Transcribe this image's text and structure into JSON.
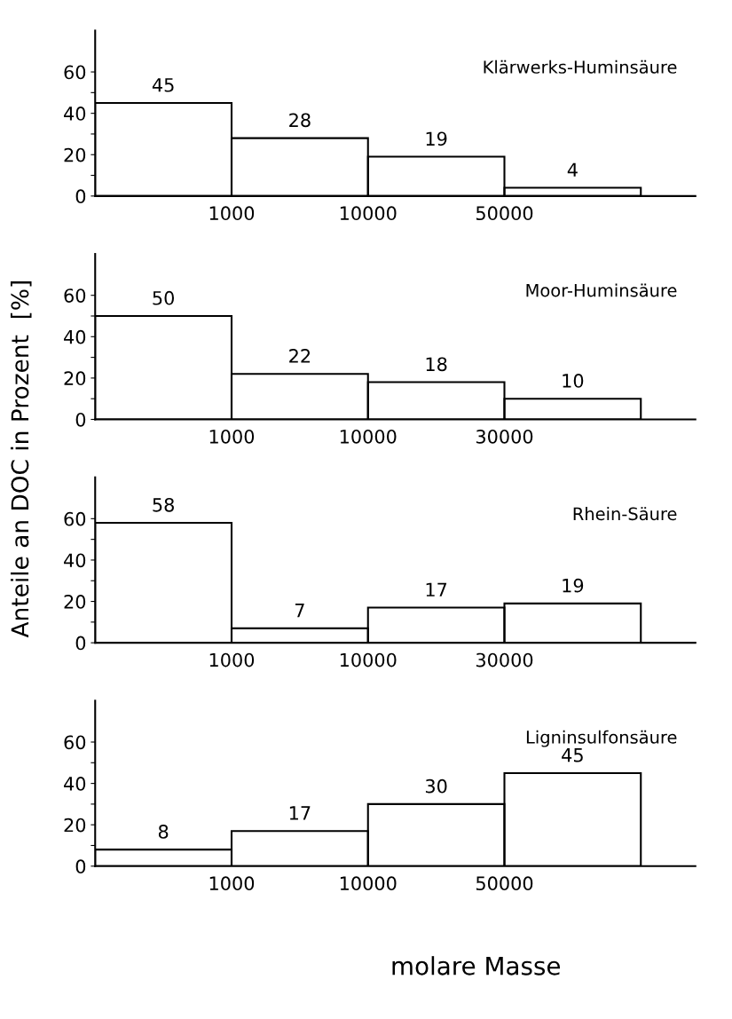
{
  "chart_data": [
    {
      "type": "bar",
      "title": "Klärwerks-Huminsäure",
      "ylabel": "Anteile an DOC in Prozent  [%]",
      "categories": [
        null,
        null,
        null,
        null
      ],
      "values": [
        45,
        28,
        19,
        4
      ],
      "color": "#000000",
      "data_labels": true,
      "ylim": [
        0,
        80
      ],
      "yticks": [
        0,
        {
          "value": 10,
          "label": null
        },
        20,
        {
          "value": 30,
          "label": null
        },
        40,
        {
          "value": 50,
          "label": null
        },
        60
      ],
      "annotations": [
        "1000",
        "10000",
        "50000"
      ],
      "grid": false
    },
    {
      "type": "bar",
      "title": "Moor-Huminsäure",
      "categories": [
        null,
        null,
        null,
        null
      ],
      "values": [
        50,
        22,
        18,
        10
      ],
      "color": "#000000",
      "data_labels": true,
      "ylim": [
        0,
        80
      ],
      "yticks": [
        0,
        {
          "value": 10,
          "label": null
        },
        20,
        {
          "value": 30,
          "label": null
        },
        40,
        {
          "value": 50,
          "label": null
        },
        60
      ],
      "annotations": [
        "1000",
        "10000",
        "30000"
      ],
      "grid": false
    },
    {
      "type": "bar",
      "title": "Rhein-Säure",
      "categories": [
        null,
        null,
        null,
        null
      ],
      "values": [
        58,
        7,
        17,
        19
      ],
      "color": "#000000",
      "data_labels": true,
      "ylim": [
        0,
        80
      ],
      "yticks": [
        0,
        {
          "value": 10,
          "label": null
        },
        20,
        {
          "value": 30,
          "label": null
        },
        40,
        {
          "value": 50,
          "label": null
        },
        60
      ],
      "annotations": [
        "1000",
        "10000",
        "30000"
      ],
      "grid": false
    },
    {
      "type": "bar",
      "title": "Ligninsulfonsäure",
      "xlabel": "molare Masse",
      "categories": [
        null,
        null,
        null,
        null
      ],
      "values": [
        8,
        17,
        30,
        45
      ],
      "color": "#000000",
      "data_labels": true,
      "ylim": [
        0,
        80
      ],
      "yticks": [
        0,
        {
          "value": 10,
          "label": null
        },
        20,
        {
          "value": 30,
          "label": null
        },
        40,
        {
          "value": 50,
          "label": null
        },
        60
      ],
      "annotations": [
        "1000",
        "10000",
        "50000"
      ],
      "grid": false
    }
  ]
}
